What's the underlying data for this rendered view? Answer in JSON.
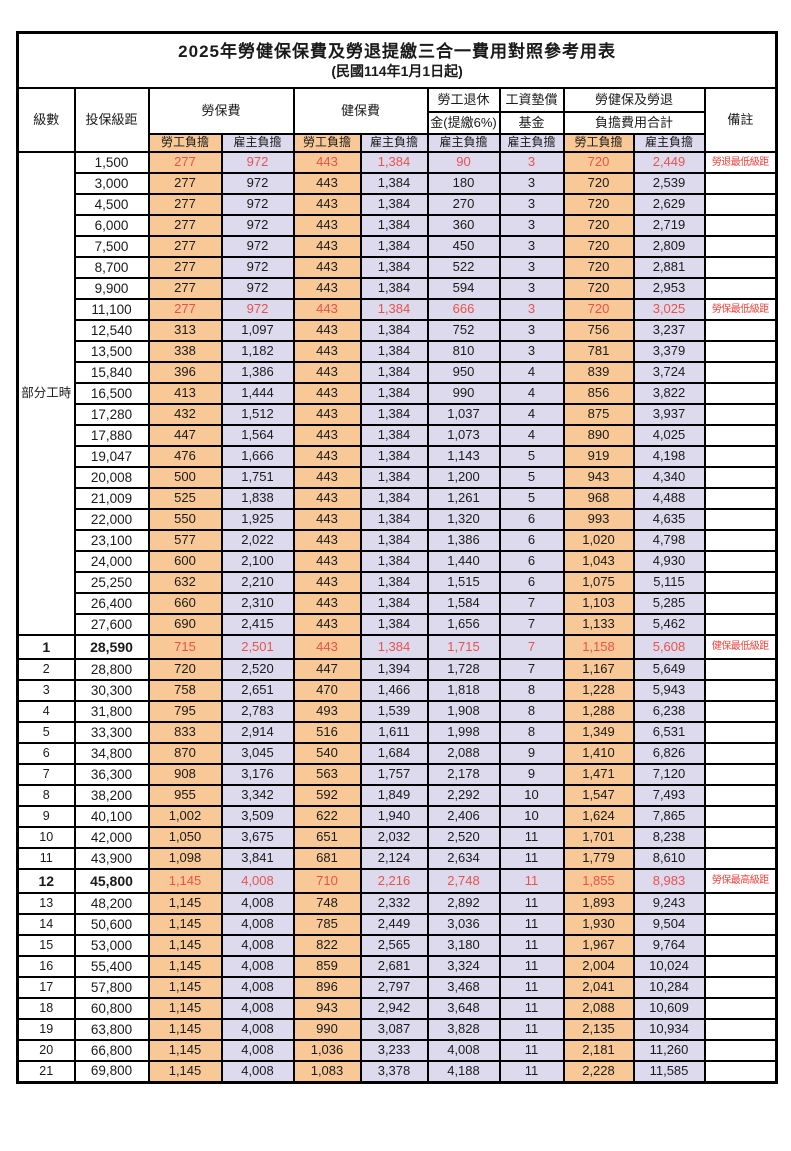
{
  "title": "2025年勞健保保費及勞退提繳三合一費用對照參考用表",
  "subtitle": "(民國114年1月1日起)",
  "colors": {
    "worker_fill": "#F8C996",
    "employer_fill": "#DDDAEE",
    "highlight_text": "#E9524B",
    "note_text": "#F2423B",
    "border": "#000000"
  },
  "header": {
    "level": "級數",
    "bracket": "投保級距",
    "labor_ins": "勞保費",
    "health_ins": "健保費",
    "pension_line1": "勞工退休",
    "pension_line2": "金(提繳6%)",
    "wage_fund_line1": "工資墊償",
    "wage_fund_line2": "基金",
    "total_line1": "勞健保及勞退",
    "total_line2": "負擔費用合計",
    "note": "備註",
    "worker": "勞工負擔",
    "employer": "雇主負擔"
  },
  "part_time_label": "部分工時",
  "rows": [
    {
      "lv": "部分工時",
      "lvspan": 23,
      "b": "1,500",
      "v": [
        "277",
        "972",
        "443",
        "1,384",
        "90",
        "3",
        "720",
        "2,449"
      ],
      "n": "勞退最低級距",
      "red": true
    },
    {
      "b": "3,000",
      "v": [
        "277",
        "972",
        "443",
        "1,384",
        "180",
        "3",
        "720",
        "2,539"
      ],
      "n": ""
    },
    {
      "b": "4,500",
      "v": [
        "277",
        "972",
        "443",
        "1,384",
        "270",
        "3",
        "720",
        "2,629"
      ],
      "n": ""
    },
    {
      "b": "6,000",
      "v": [
        "277",
        "972",
        "443",
        "1,384",
        "360",
        "3",
        "720",
        "2,719"
      ],
      "n": ""
    },
    {
      "b": "7,500",
      "v": [
        "277",
        "972",
        "443",
        "1,384",
        "450",
        "3",
        "720",
        "2,809"
      ],
      "n": ""
    },
    {
      "b": "8,700",
      "v": [
        "277",
        "972",
        "443",
        "1,384",
        "522",
        "3",
        "720",
        "2,881"
      ],
      "n": ""
    },
    {
      "b": "9,900",
      "v": [
        "277",
        "972",
        "443",
        "1,384",
        "594",
        "3",
        "720",
        "2,953"
      ],
      "n": ""
    },
    {
      "b": "11,100",
      "v": [
        "277",
        "972",
        "443",
        "1,384",
        "666",
        "3",
        "720",
        "3,025"
      ],
      "n": "勞保最低級距",
      "red": true
    },
    {
      "b": "12,540",
      "v": [
        "313",
        "1,097",
        "443",
        "1,384",
        "752",
        "3",
        "756",
        "3,237"
      ],
      "n": ""
    },
    {
      "b": "13,500",
      "v": [
        "338",
        "1,182",
        "443",
        "1,384",
        "810",
        "3",
        "781",
        "3,379"
      ],
      "n": ""
    },
    {
      "b": "15,840",
      "v": [
        "396",
        "1,386",
        "443",
        "1,384",
        "950",
        "4",
        "839",
        "3,724"
      ],
      "n": ""
    },
    {
      "b": "16,500",
      "v": [
        "413",
        "1,444",
        "443",
        "1,384",
        "990",
        "4",
        "856",
        "3,822"
      ],
      "n": ""
    },
    {
      "b": "17,280",
      "v": [
        "432",
        "1,512",
        "443",
        "1,384",
        "1,037",
        "4",
        "875",
        "3,937"
      ],
      "n": ""
    },
    {
      "b": "17,880",
      "v": [
        "447",
        "1,564",
        "443",
        "1,384",
        "1,073",
        "4",
        "890",
        "4,025"
      ],
      "n": ""
    },
    {
      "b": "19,047",
      "v": [
        "476",
        "1,666",
        "443",
        "1,384",
        "1,143",
        "5",
        "919",
        "4,198"
      ],
      "n": ""
    },
    {
      "b": "20,008",
      "v": [
        "500",
        "1,751",
        "443",
        "1,384",
        "1,200",
        "5",
        "943",
        "4,340"
      ],
      "n": ""
    },
    {
      "b": "21,009",
      "v": [
        "525",
        "1,838",
        "443",
        "1,384",
        "1,261",
        "5",
        "968",
        "4,488"
      ],
      "n": ""
    },
    {
      "b": "22,000",
      "v": [
        "550",
        "1,925",
        "443",
        "1,384",
        "1,320",
        "6",
        "993",
        "4,635"
      ],
      "n": ""
    },
    {
      "b": "23,100",
      "v": [
        "577",
        "2,022",
        "443",
        "1,384",
        "1,386",
        "6",
        "1,020",
        "4,798"
      ],
      "n": ""
    },
    {
      "b": "24,000",
      "v": [
        "600",
        "2,100",
        "443",
        "1,384",
        "1,440",
        "6",
        "1,043",
        "4,930"
      ],
      "n": ""
    },
    {
      "b": "25,250",
      "v": [
        "632",
        "2,210",
        "443",
        "1,384",
        "1,515",
        "6",
        "1,075",
        "5,115"
      ],
      "n": ""
    },
    {
      "b": "26,400",
      "v": [
        "660",
        "2,310",
        "443",
        "1,384",
        "1,584",
        "7",
        "1,103",
        "5,285"
      ],
      "n": ""
    },
    {
      "b": "27,600",
      "v": [
        "690",
        "2,415",
        "443",
        "1,384",
        "1,656",
        "7",
        "1,133",
        "5,462"
      ],
      "n": ""
    },
    {
      "lv": "1",
      "b": "28,590",
      "v": [
        "715",
        "2,501",
        "443",
        "1,384",
        "1,715",
        "7",
        "1,158",
        "5,608"
      ],
      "n": "健保最低級距",
      "red": true,
      "em": true
    },
    {
      "lv": "2",
      "b": "28,800",
      "v": [
        "720",
        "2,520",
        "447",
        "1,394",
        "1,728",
        "7",
        "1,167",
        "5,649"
      ],
      "n": ""
    },
    {
      "lv": "3",
      "b": "30,300",
      "v": [
        "758",
        "2,651",
        "470",
        "1,466",
        "1,818",
        "8",
        "1,228",
        "5,943"
      ],
      "n": ""
    },
    {
      "lv": "4",
      "b": "31,800",
      "v": [
        "795",
        "2,783",
        "493",
        "1,539",
        "1,908",
        "8",
        "1,288",
        "6,238"
      ],
      "n": ""
    },
    {
      "lv": "5",
      "b": "33,300",
      "v": [
        "833",
        "2,914",
        "516",
        "1,611",
        "1,998",
        "8",
        "1,349",
        "6,531"
      ],
      "n": ""
    },
    {
      "lv": "6",
      "b": "34,800",
      "v": [
        "870",
        "3,045",
        "540",
        "1,684",
        "2,088",
        "9",
        "1,410",
        "6,826"
      ],
      "n": ""
    },
    {
      "lv": "7",
      "b": "36,300",
      "v": [
        "908",
        "3,176",
        "563",
        "1,757",
        "2,178",
        "9",
        "1,471",
        "7,120"
      ],
      "n": ""
    },
    {
      "lv": "8",
      "b": "38,200",
      "v": [
        "955",
        "3,342",
        "592",
        "1,849",
        "2,292",
        "10",
        "1,547",
        "7,493"
      ],
      "n": ""
    },
    {
      "lv": "9",
      "b": "40,100",
      "v": [
        "1,002",
        "3,509",
        "622",
        "1,940",
        "2,406",
        "10",
        "1,624",
        "7,865"
      ],
      "n": ""
    },
    {
      "lv": "10",
      "b": "42,000",
      "v": [
        "1,050",
        "3,675",
        "651",
        "2,032",
        "2,520",
        "11",
        "1,701",
        "8,238"
      ],
      "n": ""
    },
    {
      "lv": "11",
      "b": "43,900",
      "v": [
        "1,098",
        "3,841",
        "681",
        "2,124",
        "2,634",
        "11",
        "1,779",
        "8,610"
      ],
      "n": ""
    },
    {
      "lv": "12",
      "b": "45,800",
      "v": [
        "1,145",
        "4,008",
        "710",
        "2,216",
        "2,748",
        "11",
        "1,855",
        "8,983"
      ],
      "n": "勞保最高級距",
      "red": true,
      "em": true
    },
    {
      "lv": "13",
      "b": "48,200",
      "v": [
        "1,145",
        "4,008",
        "748",
        "2,332",
        "2,892",
        "11",
        "1,893",
        "9,243"
      ],
      "n": ""
    },
    {
      "lv": "14",
      "b": "50,600",
      "v": [
        "1,145",
        "4,008",
        "785",
        "2,449",
        "3,036",
        "11",
        "1,930",
        "9,504"
      ],
      "n": ""
    },
    {
      "lv": "15",
      "b": "53,000",
      "v": [
        "1,145",
        "4,008",
        "822",
        "2,565",
        "3,180",
        "11",
        "1,967",
        "9,764"
      ],
      "n": ""
    },
    {
      "lv": "16",
      "b": "55,400",
      "v": [
        "1,145",
        "4,008",
        "859",
        "2,681",
        "3,324",
        "11",
        "2,004",
        "10,024"
      ],
      "n": ""
    },
    {
      "lv": "17",
      "b": "57,800",
      "v": [
        "1,145",
        "4,008",
        "896",
        "2,797",
        "3,468",
        "11",
        "2,041",
        "10,284"
      ],
      "n": ""
    },
    {
      "lv": "18",
      "b": "60,800",
      "v": [
        "1,145",
        "4,008",
        "943",
        "2,942",
        "3,648",
        "11",
        "2,088",
        "10,609"
      ],
      "n": ""
    },
    {
      "lv": "19",
      "b": "63,800",
      "v": [
        "1,145",
        "4,008",
        "990",
        "3,087",
        "3,828",
        "11",
        "2,135",
        "10,934"
      ],
      "n": ""
    },
    {
      "lv": "20",
      "b": "66,800",
      "v": [
        "1,145",
        "4,008",
        "1,036",
        "3,233",
        "4,008",
        "11",
        "2,181",
        "11,260"
      ],
      "n": ""
    },
    {
      "lv": "21",
      "b": "69,800",
      "v": [
        "1,145",
        "4,008",
        "1,083",
        "3,378",
        "4,188",
        "11",
        "2,228",
        "11,585"
      ],
      "n": ""
    }
  ]
}
